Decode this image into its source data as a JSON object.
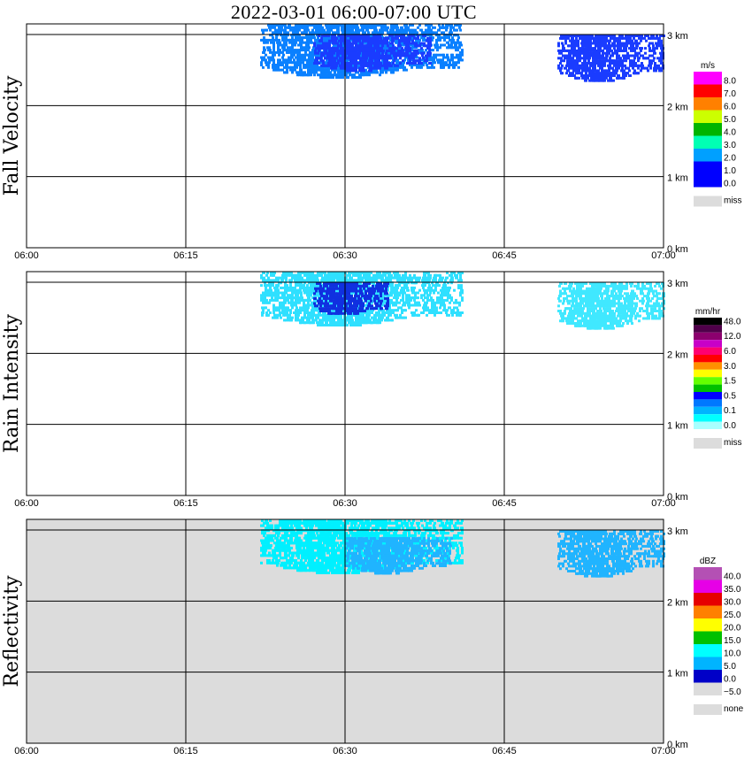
{
  "title": "2022-03-01   06:00-07:00 UTC",
  "x_ticks": [
    "06:00",
    "06:15",
    "06:30",
    "06:45",
    "07:00"
  ],
  "y_ticks": [
    "0 km",
    "1 km",
    "2 km",
    "3 km"
  ],
  "chart_data": [
    {
      "type": "heatmap",
      "title": "",
      "ylabel": "Fall Velocity",
      "xlabel": "",
      "x_range": [
        "06:00",
        "07:00"
      ],
      "y_range_km": [
        0,
        3.15
      ],
      "grid": true,
      "background": "#ffffff",
      "legend": {
        "unit": "m/s",
        "placement": "right",
        "entries": [
          {
            "label": "8.0",
            "color": "#ff00ff"
          },
          {
            "label": "7.0",
            "color": "#ff0000"
          },
          {
            "label": "6.0",
            "color": "#ff8000"
          },
          {
            "label": "5.0",
            "color": "#ccff00"
          },
          {
            "label": "4.0",
            "color": "#00b400"
          },
          {
            "label": "3.0",
            "color": "#00ffb4"
          },
          {
            "label": "2.0",
            "color": "#00a0ff"
          },
          {
            "label": "1.0",
            "color": "#0000ff"
          },
          {
            "label": "0.0",
            "color": "#0000ff"
          },
          {
            "label": "miss",
            "color": "#dcdcdc"
          }
        ]
      },
      "regions": [
        {
          "minute_start": 22,
          "minute_end": 41,
          "km_bottom": 2.4,
          "km_top": 3.15,
          "color": "#0a80ff"
        },
        {
          "minute_start": 27,
          "minute_end": 38,
          "km_bottom": 2.5,
          "km_top": 3.0,
          "color": "#1a3cff"
        },
        {
          "minute_start": 50,
          "minute_end": 60,
          "km_bottom": 2.35,
          "km_top": 3.0,
          "color": "#1a3cff"
        }
      ]
    },
    {
      "type": "heatmap",
      "title": "",
      "ylabel": "Rain Intensity",
      "xlabel": "",
      "x_range": [
        "06:00",
        "07:00"
      ],
      "y_range_km": [
        0,
        3.15
      ],
      "grid": true,
      "background": "#ffffff",
      "legend": {
        "unit": "mm/hr",
        "placement": "right",
        "entries": [
          {
            "label": "48.0",
            "color": "#000000"
          },
          {
            "label": "",
            "color": "#50004a"
          },
          {
            "label": "12.0",
            "color": "#8c006e"
          },
          {
            "label": "",
            "color": "#c800c8"
          },
          {
            "label": "6.0",
            "color": "#ff0070"
          },
          {
            "label": "",
            "color": "#ff0000"
          },
          {
            "label": "3.0",
            "color": "#ff9000"
          },
          {
            "label": "",
            "color": "#ffff00"
          },
          {
            "label": "1.5",
            "color": "#64ff00"
          },
          {
            "label": "",
            "color": "#00c000"
          },
          {
            "label": "0.5",
            "color": "#0000ff"
          },
          {
            "label": "",
            "color": "#0078ff"
          },
          {
            "label": "0.1",
            "color": "#00b4ff"
          },
          {
            "label": "",
            "color": "#00ffff"
          },
          {
            "label": "0.0",
            "color": "#a8ffff"
          },
          {
            "label": "miss",
            "color": "#dcdcdc"
          }
        ]
      },
      "regions": [
        {
          "minute_start": 22,
          "minute_end": 41,
          "km_bottom": 2.4,
          "km_top": 3.15,
          "color": "#2fe0ff"
        },
        {
          "minute_start": 27,
          "minute_end": 34,
          "km_bottom": 2.55,
          "km_top": 3.0,
          "color": "#1030e0"
        },
        {
          "minute_start": 50,
          "minute_end": 60,
          "km_bottom": 2.35,
          "km_top": 3.0,
          "color": "#40e8ff"
        }
      ]
    },
    {
      "type": "heatmap",
      "title": "",
      "ylabel": "Reflectivity",
      "xlabel": "",
      "x_range": [
        "06:00",
        "07:00"
      ],
      "y_range_km": [
        0,
        3.15
      ],
      "grid": true,
      "background": "#dcdcdc",
      "legend": {
        "unit": "dBZ",
        "placement": "right",
        "entries": [
          {
            "label": "40.0",
            "color": "#b450b4"
          },
          {
            "label": "35.0",
            "color": "#e600e6"
          },
          {
            "label": "30.0",
            "color": "#e60000"
          },
          {
            "label": "25.0",
            "color": "#ff8000"
          },
          {
            "label": "20.0",
            "color": "#ffff00"
          },
          {
            "label": "15.0",
            "color": "#00c000"
          },
          {
            "label": "10.0",
            "color": "#00ffff"
          },
          {
            "label": "5.0",
            "color": "#00b4ff"
          },
          {
            "label": "0.0",
            "color": "#0000c8"
          },
          {
            "label": "−5.0",
            "color": "#dcdcdc"
          },
          {
            "label": "none",
            "color": "#dcdcdc"
          }
        ]
      },
      "regions": [
        {
          "minute_start": 22,
          "minute_end": 41,
          "km_bottom": 2.4,
          "km_top": 3.15,
          "color": "#00f0ff"
        },
        {
          "minute_start": 30,
          "minute_end": 40,
          "km_bottom": 2.4,
          "km_top": 2.9,
          "color": "#20b4ff"
        },
        {
          "minute_start": 50,
          "minute_end": 60,
          "km_bottom": 2.35,
          "km_top": 3.0,
          "color": "#20b4ff"
        }
      ]
    }
  ]
}
